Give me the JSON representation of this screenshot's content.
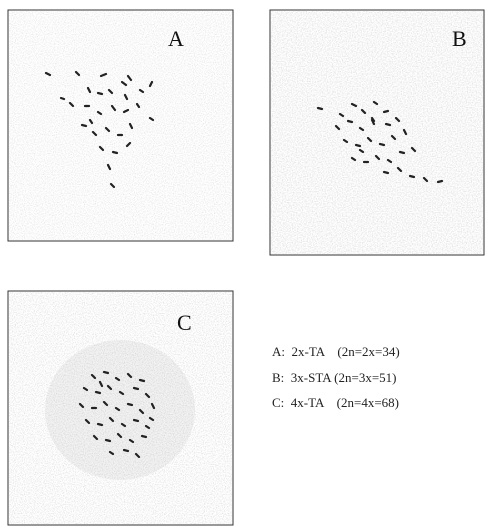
{
  "panels": [
    {
      "label": "A"
    },
    {
      "label": "B"
    },
    {
      "label": "C"
    }
  ],
  "legend": [
    "A:  2x-TA    (2n=2x=34)",
    "B:  3x-STA (2n=3x=51)",
    "C:  4x-TA    (2n=4x=68)"
  ]
}
